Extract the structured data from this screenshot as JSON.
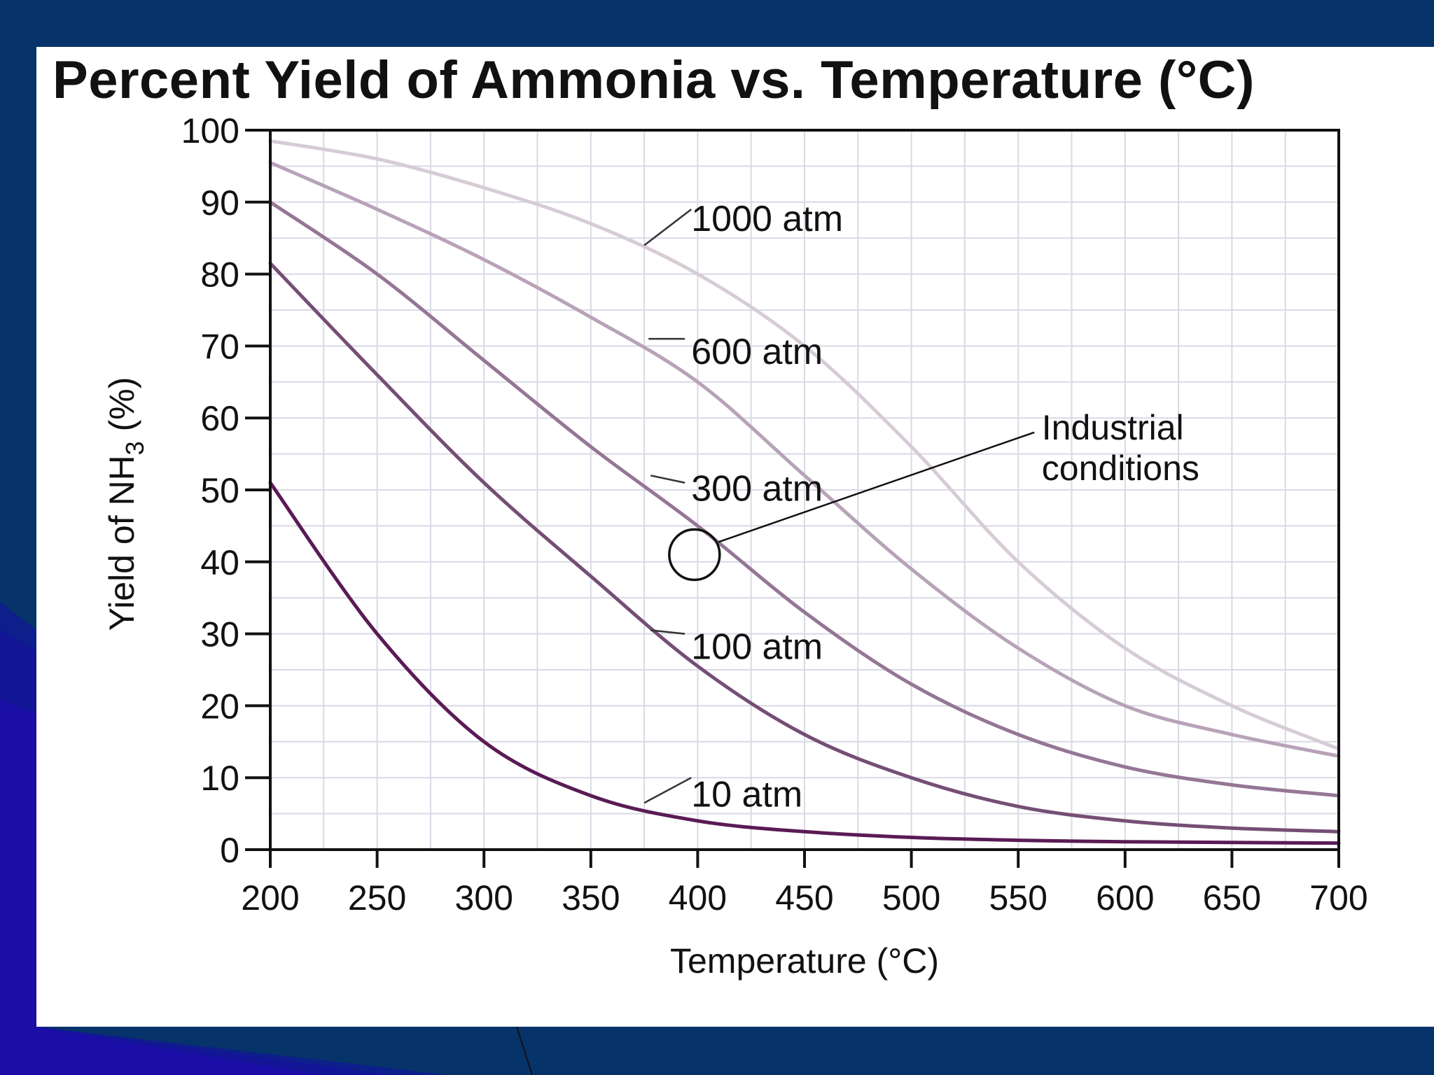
{
  "chart_data": {
    "type": "line",
    "title": "Percent Yield of Ammonia vs. Temperature (°C)",
    "xlabel": "Temperature (°C)",
    "ylabel_parts": [
      "Yield of NH",
      "3",
      " (%)"
    ],
    "xlim": [
      200,
      700
    ],
    "ylim": [
      0,
      100
    ],
    "x_ticks": [
      200,
      250,
      300,
      350,
      400,
      450,
      500,
      550,
      600,
      650,
      700
    ],
    "y_ticks": [
      0,
      10,
      20,
      30,
      40,
      50,
      60,
      70,
      80,
      90,
      100
    ],
    "grid": true,
    "x": [
      200,
      250,
      300,
      350,
      400,
      450,
      500,
      550,
      600,
      650,
      700
    ],
    "series": [
      {
        "name": "1000 atm",
        "label": "1000 atm",
        "color": "#d6ccd6",
        "values": [
          98.5,
          96,
          92,
          87,
          80,
          70,
          56,
          40,
          28,
          20,
          14
        ]
      },
      {
        "name": "600 atm",
        "label": "600 atm",
        "color": "#b7a3b7",
        "values": [
          95.5,
          89,
          82,
          74,
          65,
          52,
          39,
          28,
          20,
          16,
          13
        ]
      },
      {
        "name": "300 atm",
        "label": "300 atm",
        "color": "#957695",
        "values": [
          90,
          80,
          68,
          56,
          45,
          33,
          23,
          16,
          11.5,
          9,
          7.5
        ]
      },
      {
        "name": "100 atm",
        "label": "100 atm",
        "color": "#754e75",
        "values": [
          81.5,
          66,
          51,
          38,
          25.5,
          16,
          10,
          6,
          4,
          3,
          2.5
        ]
      },
      {
        "name": "10 atm",
        "label": "10 atm",
        "color": "#5a1b55",
        "values": [
          51,
          30,
          15,
          7.5,
          4,
          2.5,
          1.7,
          1.3,
          1.1,
          1,
          0.9
        ]
      }
    ],
    "annotations": [
      {
        "id": "industrial",
        "lines": [
          "Industrial",
          "conditions"
        ],
        "x": 400,
        "y": 41
      }
    ]
  }
}
